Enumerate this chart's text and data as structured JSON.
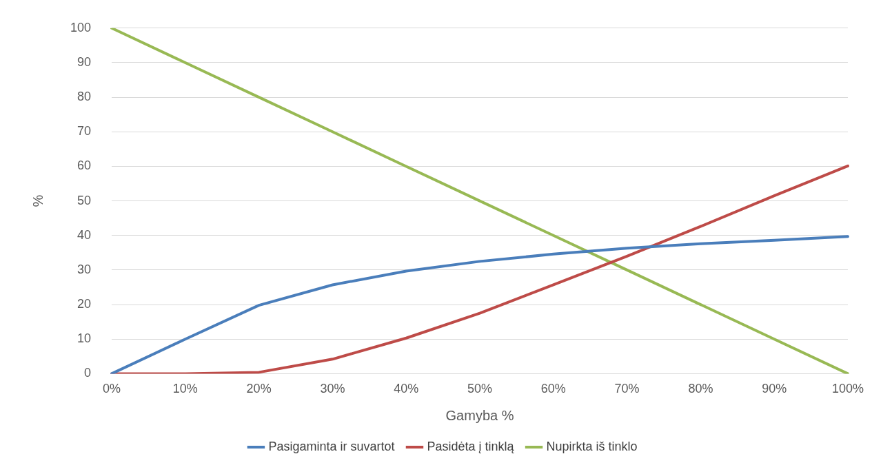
{
  "chart_data": {
    "type": "line",
    "xlabel": "Gamyba %",
    "ylabel": "%",
    "categories": [
      "0%",
      "10%",
      "20%",
      "30%",
      "40%",
      "50%",
      "60%",
      "70%",
      "80%",
      "90%",
      "100%"
    ],
    "series": [
      {
        "name": "Pasigaminta ir suvartot",
        "color": "#4a7ebb",
        "values": [
          0,
          10,
          19.8,
          25.7,
          29.7,
          32.5,
          34.6,
          36.3,
          37.6,
          38.6,
          39.7
        ]
      },
      {
        "name": "Pasidėta į tinklą",
        "color": "#be4b48",
        "values": [
          0,
          0,
          0.4,
          4.2,
          10.3,
          17.5,
          25.7,
          34,
          42.6,
          51.5,
          60.1
        ]
      },
      {
        "name": "Nupirkta iš tinklo",
        "color": "#98b954",
        "values": [
          100,
          90,
          80,
          70,
          60,
          50,
          40,
          30,
          20,
          10,
          0
        ]
      }
    ],
    "ylim": [
      0,
      100
    ],
    "yticks": [
      0,
      10,
      20,
      30,
      40,
      50,
      60,
      70,
      80,
      90,
      100
    ],
    "grid": "y",
    "legend": "bottom",
    "marker": "none",
    "line_style": "solid"
  }
}
